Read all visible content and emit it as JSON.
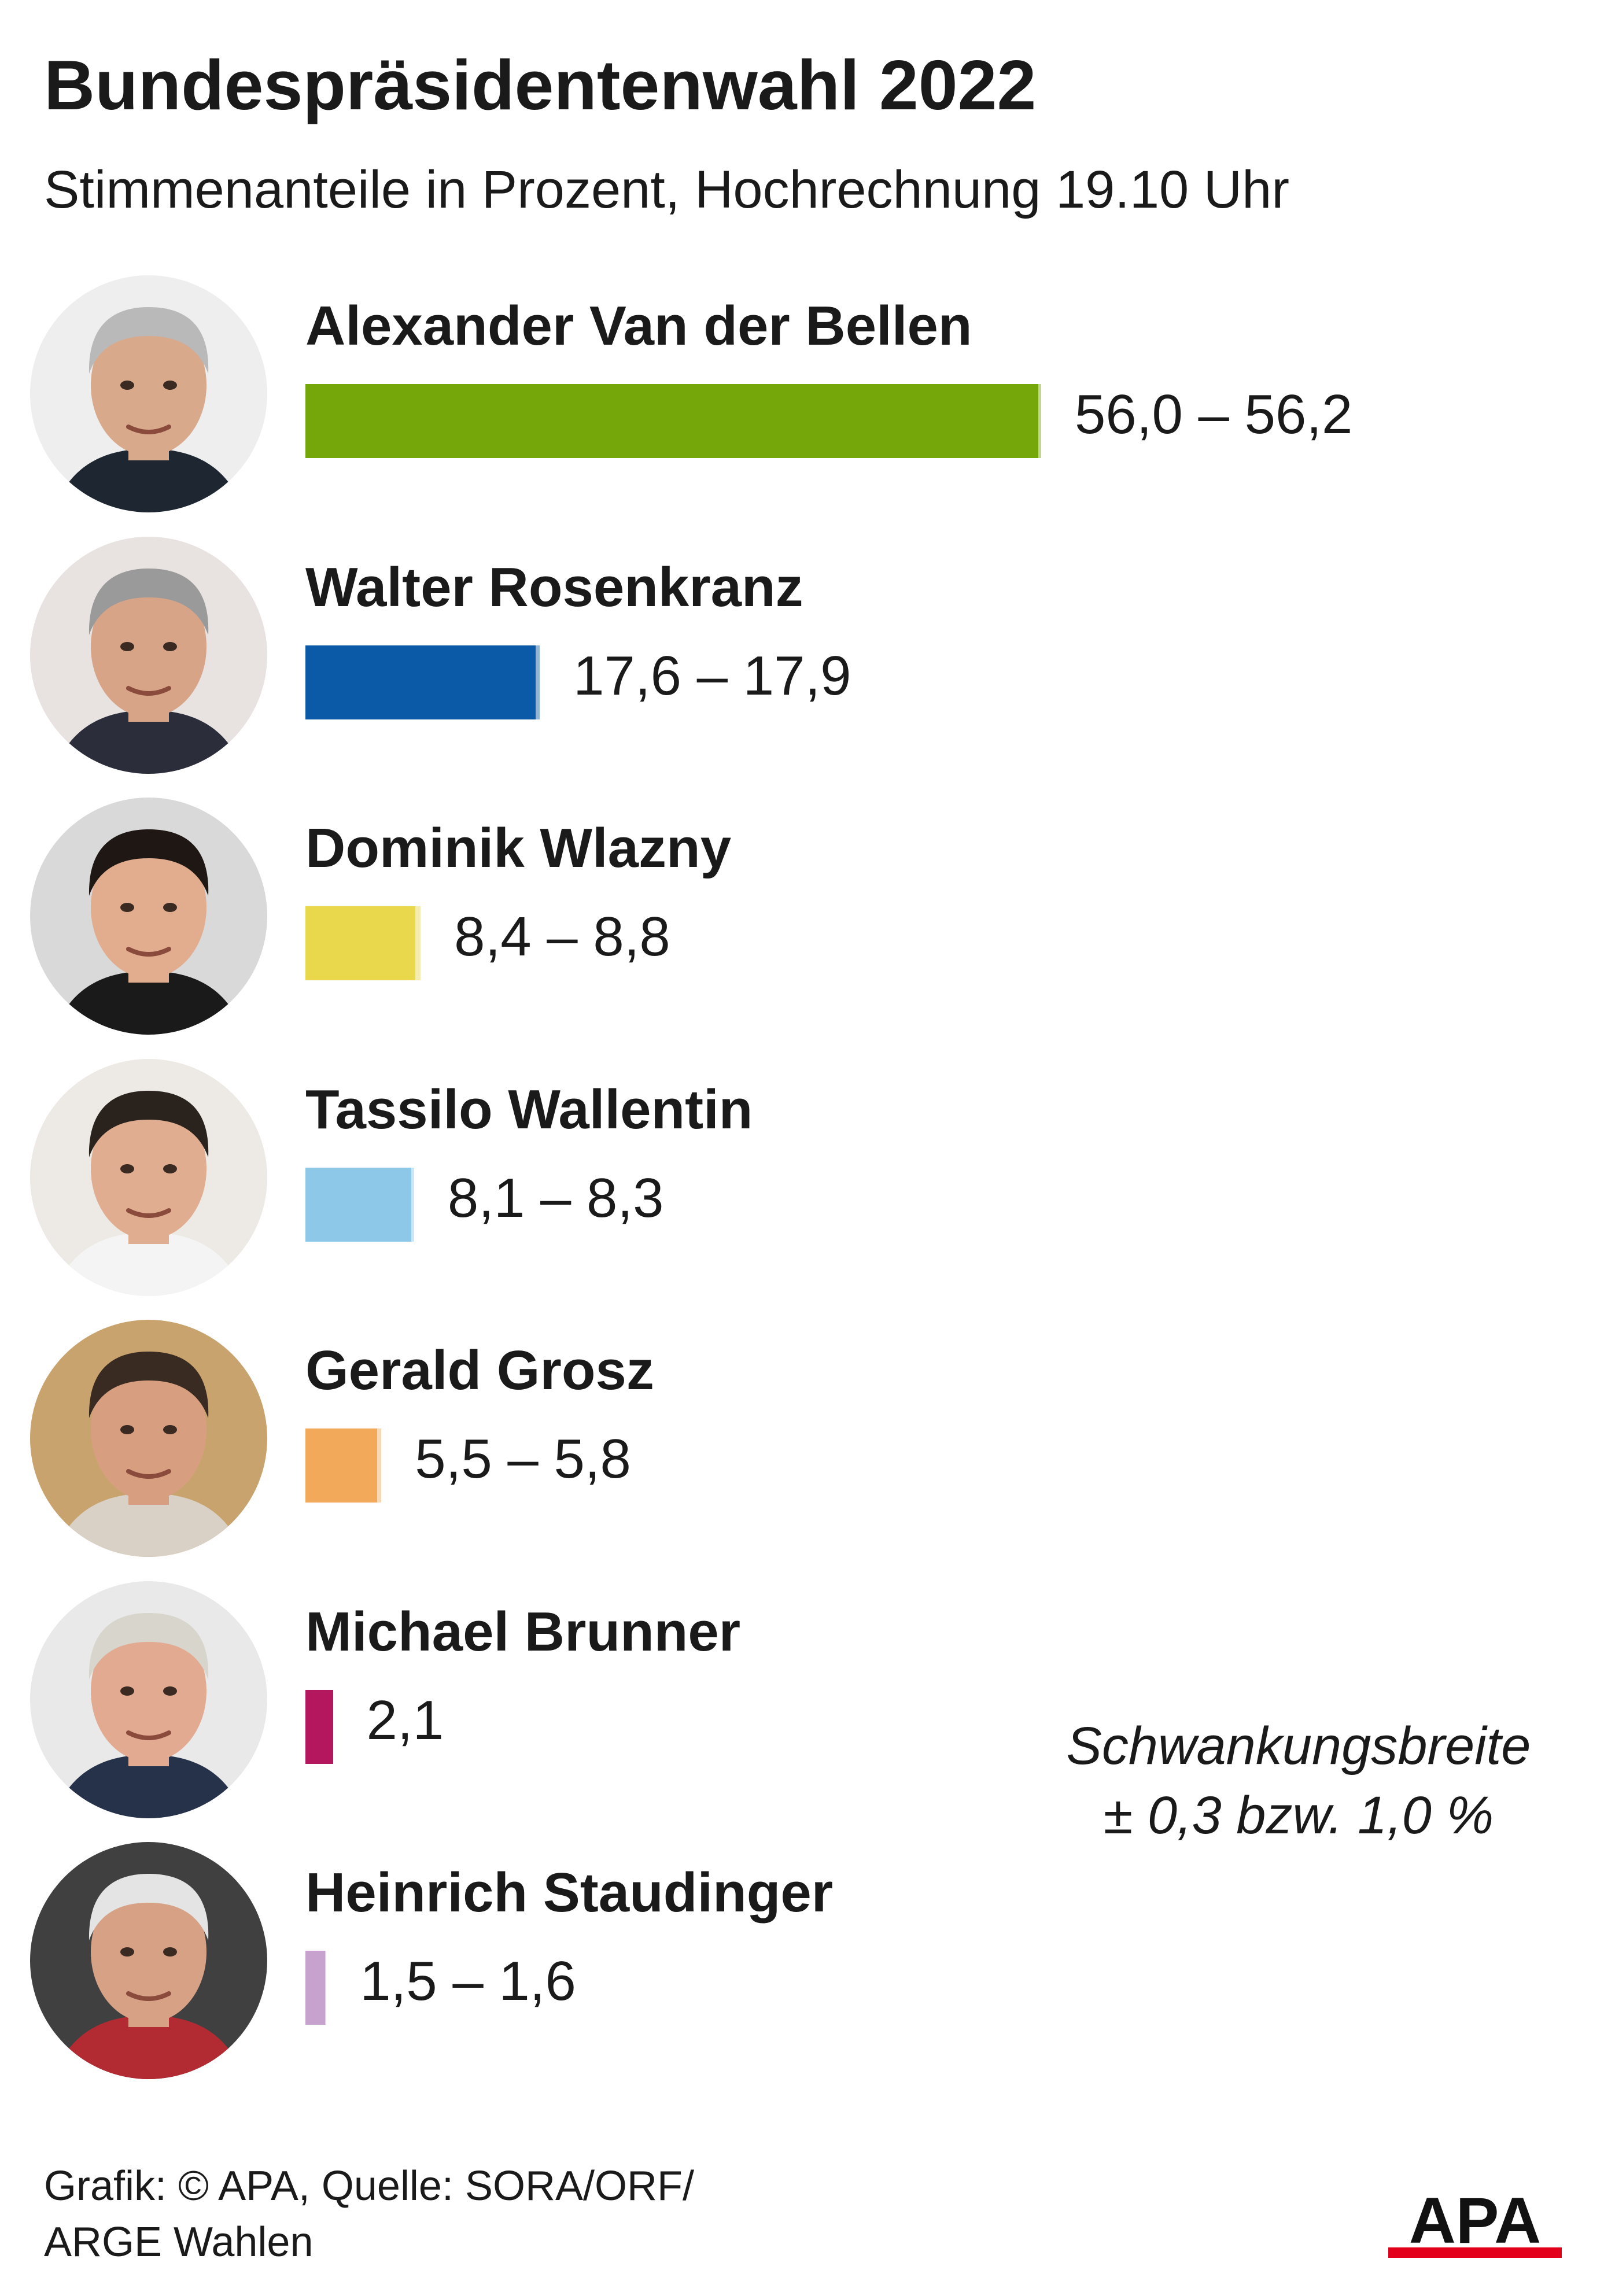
{
  "header": {
    "title": "Bundespräsidentenwahl 2022",
    "subtitle": "Stimmenanteile in Prozent, Hochrechnung 19.10 Uhr"
  },
  "chart_data": {
    "type": "bar",
    "orientation": "horizontal",
    "title": "Bundespräsidentenwahl 2022",
    "subtitle": "Stimmenanteile in Prozent, Hochrechnung 19.10 Uhr",
    "unit": "%",
    "xlim": [
      0,
      60
    ],
    "grid": false,
    "categories": [
      "Alexander Van der Bellen",
      "Walter Rosenkranz",
      "Dominik Wlazny",
      "Tassilo Wallentin",
      "Gerald Grosz",
      "Michael Brunner",
      "Heinrich Staudinger"
    ],
    "series": [
      {
        "values_low": [
          56.0,
          17.6,
          8.4,
          8.1,
          5.5,
          2.1,
          1.5
        ],
        "values_high": [
          56.2,
          17.9,
          8.8,
          8.3,
          5.8,
          2.1,
          1.6
        ],
        "labels": [
          "56,0 – 56,2",
          "17,6 – 17,9",
          "8,4 – 8,8",
          "8,1 – 8,3",
          "5,5 – 5,8",
          "2,1",
          "1,5 – 1,6"
        ],
        "colors": [
          "#76a70a",
          "#0a5aa8",
          "#e9d84b",
          "#8ec8e8",
          "#f3a95a",
          "#b5175f",
          "#c8a2cf"
        ]
      }
    ]
  },
  "portraits": [
    {
      "icon": "portrait-icon",
      "hair": "#b9b9b9",
      "skin": "#d9a98c",
      "bg": "#eeeeee",
      "suit": "#1e2632"
    },
    {
      "icon": "portrait-icon",
      "hair": "#9a9a9a",
      "skin": "#d8a487",
      "bg": "#e8e2e0",
      "suit": "#2b2e3a"
    },
    {
      "icon": "portrait-icon",
      "hair": "#1e1714",
      "skin": "#e2ad8e",
      "bg": "#d9d9d9",
      "suit": "#1a1a1a"
    },
    {
      "icon": "portrait-icon",
      "hair": "#2a221d",
      "skin": "#e0ad90",
      "bg": "#ede9e4",
      "suit": "#f4f4f4"
    },
    {
      "icon": "portrait-icon",
      "hair": "#3a2b22",
      "skin": "#d79f80",
      "bg": "#c9a36e",
      "suit": "#d9d0c6"
    },
    {
      "icon": "portrait-icon",
      "hair": "#d8d5cc",
      "skin": "#e3aa92",
      "bg": "#e9e9e9",
      "suit": "#26324a"
    },
    {
      "icon": "portrait-icon",
      "hair": "#e4e4e4",
      "skin": "#d7a186",
      "bg": "#404040",
      "suit": "#b22b33"
    }
  ],
  "note": {
    "line1": "Schwankungsbreite",
    "line2": "± 0,3 bzw. 1,0 %"
  },
  "footer": {
    "line1": "Grafik: © APA, Quelle: SORA/ORF/",
    "line2": "ARGE Wahlen"
  },
  "logo": {
    "text": "APA",
    "color": "#111111",
    "accent": "#e3001b"
  }
}
